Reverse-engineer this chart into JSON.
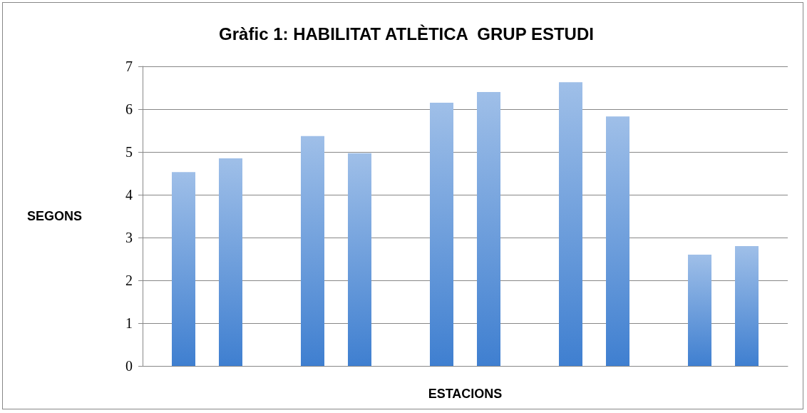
{
  "chart_data": {
    "type": "bar",
    "title": "Gràfic 1: HABILITAT ATLÈTICA  GRUP ESTUDI",
    "xlabel": "ESTACIONS",
    "ylabel": "SEGONS",
    "categories": [
      null,
      null,
      null,
      null,
      null
    ],
    "series": [
      {
        "color": "#3f7fd0",
        "values": [
          4.53,
          5.37,
          6.15,
          6.63,
          2.6
        ]
      },
      {
        "color": "#3f7fd0",
        "values": [
          4.85,
          4.97,
          6.4,
          5.83,
          2.8
        ]
      }
    ],
    "ylim": [
      0,
      7
    ],
    "yticks": [
      0,
      1,
      2,
      3,
      4,
      5,
      6,
      7
    ],
    "grid": "y"
  }
}
